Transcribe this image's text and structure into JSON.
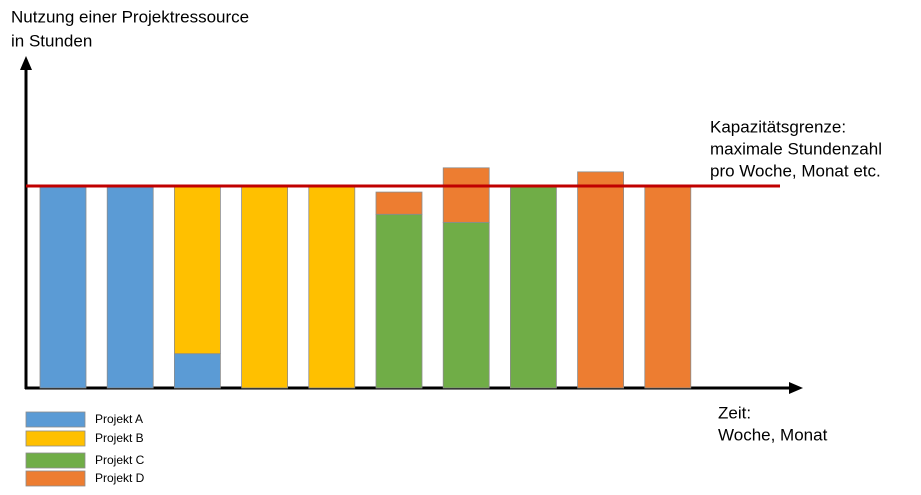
{
  "chart_data": {
    "type": "bar",
    "stacked": true,
    "y_label": [
      "Nutzung einer Projektressource",
      "in Stunden"
    ],
    "x_label": [
      "Zeit:",
      "Woche, Monat"
    ],
    "categories": [
      null,
      null,
      null,
      null,
      null,
      null,
      null,
      null,
      null,
      null
    ],
    "series": [
      {
        "name": "Projekt A",
        "color": "#5b9bd5",
        "values": [
          100,
          100,
          17,
          null,
          null,
          null,
          null,
          null,
          null,
          null
        ]
      },
      {
        "name": "Projekt B",
        "color": "#ffc000",
        "values": [
          null,
          null,
          83,
          100,
          100,
          null,
          null,
          null,
          null,
          null
        ]
      },
      {
        "name": "Projekt C",
        "color": "#70ad47",
        "values": [
          null,
          null,
          null,
          null,
          null,
          86,
          82,
          100,
          null,
          null
        ]
      },
      {
        "name": "Projekt D",
        "color": "#ed7d31",
        "values": [
          null,
          null,
          null,
          null,
          null,
          11,
          27,
          null,
          107,
          100
        ]
      }
    ],
    "ylim": [
      0,
      162
    ],
    "capacity": {
      "value": 100,
      "color": "#c00000",
      "label": [
        "Kapazitätsgrenze:",
        "maximale Stundenzahl",
        "pro Woche, Monat etc."
      ]
    }
  }
}
